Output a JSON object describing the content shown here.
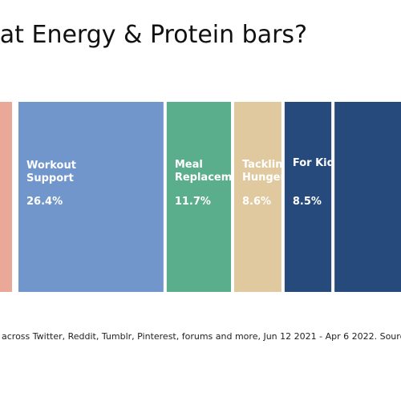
{
  "page": {
    "title": "eat Energy & Protein bars?"
  },
  "chart_data": {
    "type": "bar",
    "orientation": "stacked-horizontal",
    "categories": [
      "",
      "Workout Support",
      "Meal Replacement",
      "Tackling Hunger",
      "For Kids",
      ""
    ],
    "category_lines": [
      [],
      [
        "Workout",
        "Support"
      ],
      [
        "Meal",
        "Replacement"
      ],
      [
        "Tackling",
        "Hunger"
      ],
      [
        "For Kids"
      ],
      []
    ],
    "values": [
      null,
      26.4,
      11.7,
      8.6,
      8.5,
      null
    ],
    "value_labels": [
      "",
      "26.4%",
      "11.7%",
      "8.6%",
      "8.5%",
      ""
    ],
    "colors": [
      "#E9A898",
      "#7096CB",
      "#5BAE8B",
      "#E0C99F",
      "#254A7B",
      "#254A7B"
    ],
    "title": "eat Energy & Protein bars?",
    "xlabel": "",
    "ylabel": "",
    "unit": "%",
    "grid": false,
    "legend": "none"
  },
  "footnote": "across Twitter, Reddit, Tumblr, Pinterest, forums and more, Jun 12 2021 - Apr 6 2022. Sourc"
}
